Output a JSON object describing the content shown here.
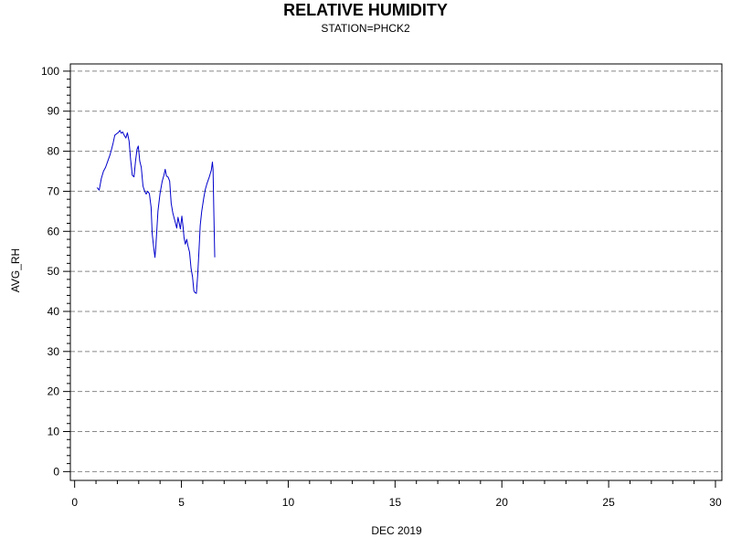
{
  "chart_data": {
    "type": "line",
    "title": "RELATIVE HUMIDITY",
    "subtitle": "STATION=PHCK2",
    "xlabel": "DEC 2019",
    "ylabel": "AVG_RH",
    "xlim": [
      -0.2,
      30.3
    ],
    "ylim": [
      -2.2,
      101.8
    ],
    "x_ticks": [
      0,
      5,
      10,
      15,
      20,
      25,
      30
    ],
    "y_ticks": [
      0,
      10,
      20,
      30,
      40,
      50,
      60,
      70,
      80,
      90,
      100
    ],
    "grid": "horizontal dashed",
    "colors": {
      "line": "#0000cc",
      "grid": "#888888",
      "axis": "#000000"
    },
    "series": [
      {
        "values": [
          [
            1.05,
            70.9
          ],
          [
            1.15,
            70.3
          ],
          [
            1.25,
            73.2
          ],
          [
            1.35,
            75.0
          ],
          [
            1.45,
            76.0
          ],
          [
            1.55,
            77.5
          ],
          [
            1.65,
            79.0
          ],
          [
            1.72,
            80.3
          ],
          [
            1.8,
            82.0
          ],
          [
            1.88,
            84.0
          ],
          [
            1.95,
            84.3
          ],
          [
            2.05,
            84.7
          ],
          [
            2.12,
            85.2
          ],
          [
            2.18,
            84.5
          ],
          [
            2.25,
            84.8
          ],
          [
            2.32,
            84.0
          ],
          [
            2.4,
            83.3
          ],
          [
            2.47,
            84.6
          ],
          [
            2.55,
            82.5
          ],
          [
            2.62,
            78.0
          ],
          [
            2.7,
            74.0
          ],
          [
            2.78,
            73.6
          ],
          [
            2.85,
            77.5
          ],
          [
            2.92,
            80.5
          ],
          [
            2.98,
            81.3
          ],
          [
            3.05,
            77.5
          ],
          [
            3.12,
            76.0
          ],
          [
            3.2,
            71.3
          ],
          [
            3.28,
            70.0
          ],
          [
            3.35,
            69.3
          ],
          [
            3.42,
            70.0
          ],
          [
            3.5,
            69.4
          ],
          [
            3.58,
            66.0
          ],
          [
            3.63,
            59.5
          ],
          [
            3.7,
            56.0
          ],
          [
            3.76,
            53.5
          ],
          [
            3.8,
            56.0
          ],
          [
            3.9,
            65.0
          ],
          [
            4.0,
            69.5
          ],
          [
            4.1,
            72.5
          ],
          [
            4.18,
            74.0
          ],
          [
            4.24,
            75.5
          ],
          [
            4.3,
            73.8
          ],
          [
            4.38,
            73.5
          ],
          [
            4.45,
            72.5
          ],
          [
            4.52,
            67.0
          ],
          [
            4.6,
            64.5
          ],
          [
            4.7,
            62.5
          ],
          [
            4.78,
            60.8
          ],
          [
            4.84,
            63.5
          ],
          [
            4.9,
            62.0
          ],
          [
            4.95,
            60.6
          ],
          [
            5.02,
            63.8
          ],
          [
            5.08,
            61.0
          ],
          [
            5.12,
            58.5
          ],
          [
            5.18,
            56.8
          ],
          [
            5.25,
            58.0
          ],
          [
            5.3,
            56.5
          ],
          [
            5.38,
            54.8
          ],
          [
            5.45,
            50.8
          ],
          [
            5.52,
            48.6
          ],
          [
            5.58,
            45.2
          ],
          [
            5.63,
            44.7
          ],
          [
            5.7,
            44.5
          ],
          [
            5.76,
            49.0
          ],
          [
            5.82,
            55.0
          ],
          [
            5.88,
            61.5
          ],
          [
            5.95,
            65.0
          ],
          [
            6.05,
            68.5
          ],
          [
            6.12,
            70.5
          ],
          [
            6.2,
            72.0
          ],
          [
            6.3,
            73.5
          ],
          [
            6.4,
            75.3
          ],
          [
            6.45,
            77.3
          ],
          [
            6.48,
            75.5
          ],
          [
            6.52,
            64.0
          ],
          [
            6.56,
            53.5
          ]
        ]
      }
    ]
  }
}
